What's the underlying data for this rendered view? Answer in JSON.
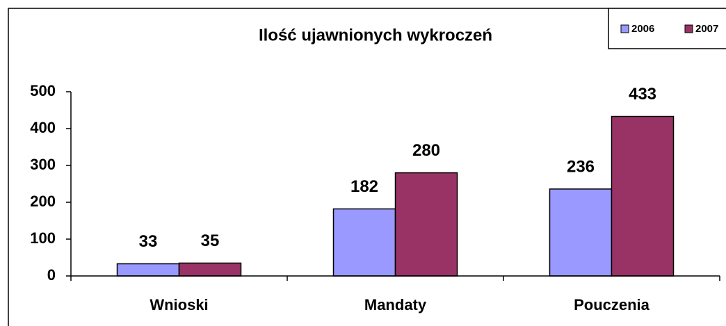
{
  "chart_data": {
    "type": "bar",
    "title": "Ilość ujawnionych wykroczeń",
    "categories": [
      "Wnioski",
      "Mandaty",
      "Pouczenia"
    ],
    "series": [
      {
        "name": "2006",
        "color": "#9999ff",
        "values": [
          33,
          182,
          236
        ]
      },
      {
        "name": "2007",
        "color": "#993366",
        "values": [
          35,
          280,
          433
        ]
      }
    ],
    "ylim": [
      0,
      500
    ],
    "yticks": [
      0,
      100,
      200,
      300,
      400,
      500
    ],
    "grid": false,
    "legend": "top-right"
  }
}
